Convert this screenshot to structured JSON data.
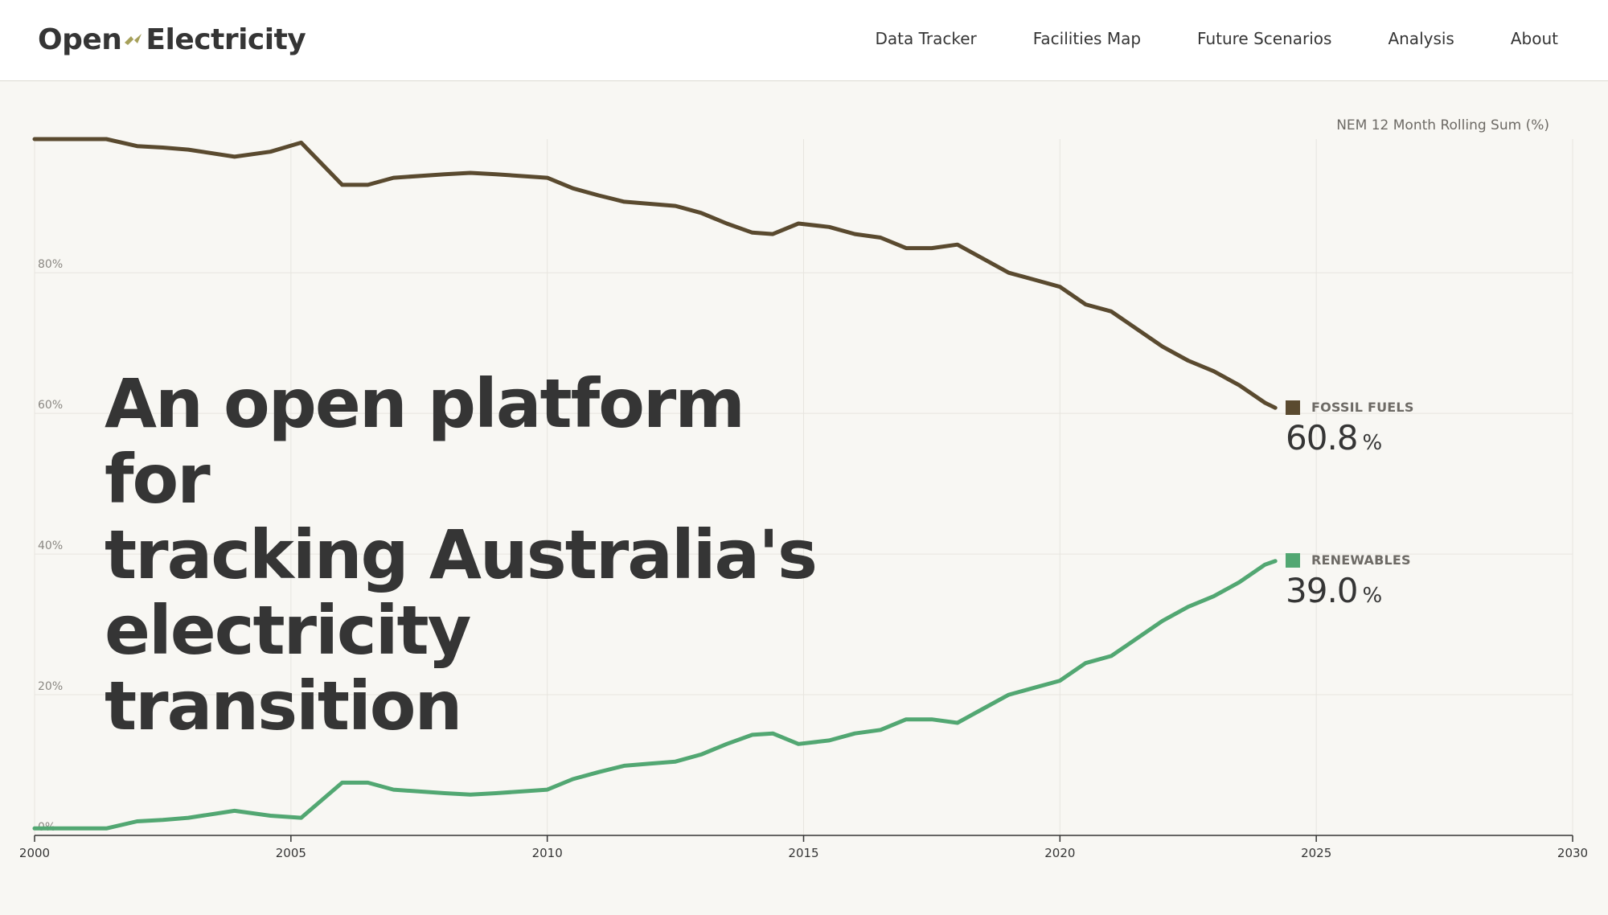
{
  "brand": {
    "name_left": "Open",
    "name_right": "Electricity",
    "logo_accent": "#a6a05a"
  },
  "nav": {
    "items": [
      {
        "label": "Data Tracker",
        "name": "nav-data-tracker"
      },
      {
        "label": "Facilities Map",
        "name": "nav-facilities-map"
      },
      {
        "label": "Future Scenarios",
        "name": "nav-future-scenarios"
      },
      {
        "label": "Analysis",
        "name": "nav-analysis"
      },
      {
        "label": "About",
        "name": "nav-about"
      }
    ]
  },
  "hero": {
    "headline_lines": [
      "An open platform for",
      "tracking Australia's",
      "electricity transition"
    ]
  },
  "chart_caption": "NEM 12 Month Rolling Sum (%)",
  "legend": {
    "fossil": {
      "label": "FOSSIL FUELS",
      "value": "60.8",
      "unit": "%",
      "color": "#5a4a2f"
    },
    "renewables": {
      "label": "RENEWABLES",
      "value": "39.0",
      "unit": "%",
      "color": "#52a772"
    }
  },
  "chart_data": {
    "type": "line",
    "title": "NEM 12 Month Rolling Sum (%)",
    "xlabel": "",
    "ylabel": "",
    "xlim": [
      2000,
      2030
    ],
    "ylim": [
      0,
      99
    ],
    "x_ticks": [
      "2000",
      "2005",
      "2010",
      "2015",
      "2020",
      "2025",
      "2030"
    ],
    "y_ticks": [
      "0%",
      "20%",
      "40%",
      "60%",
      "80%"
    ],
    "grid": true,
    "x": [
      2000,
      2001.4,
      2002,
      2002.5,
      2003,
      2003.9,
      2004.6,
      2005.2,
      2006,
      2006.5,
      2007,
      2008,
      2008.5,
      2009,
      2010,
      2010.5,
      2011,
      2011.5,
      2012,
      2012.5,
      2013,
      2013.5,
      2014,
      2014.4,
      2014.9,
      2015.5,
      2016,
      2016.5,
      2017,
      2017.5,
      2018,
      2018.5,
      2019,
      2019.5,
      2020,
      2020.5,
      2021,
      2021.5,
      2022,
      2022.5,
      2023,
      2023.5,
      2024,
      2024.2
    ],
    "series": [
      {
        "name": "FOSSIL FUELS",
        "color": "#5a4a2f",
        "values": [
          99,
          99,
          98,
          97.8,
          97.5,
          96.5,
          97.2,
          98.5,
          92.5,
          92.5,
          93.5,
          94,
          94.2,
          94,
          93.5,
          92,
          91,
          90.1,
          89.8,
          89.5,
          88.5,
          87,
          85.7,
          85.5,
          87,
          86.5,
          85.5,
          85,
          83.5,
          83.5,
          84,
          82,
          80,
          79,
          78,
          75.5,
          74.5,
          72,
          69.5,
          67.5,
          66,
          64,
          61.5,
          60.8
        ]
      },
      {
        "name": "RENEWABLES",
        "color": "#52a772",
        "values": [
          1,
          1,
          2,
          2.2,
          2.5,
          3.5,
          2.8,
          2.5,
          7.5,
          7.5,
          6.5,
          6,
          5.8,
          6,
          6.5,
          8,
          9,
          9.9,
          10.2,
          10.5,
          11.5,
          13,
          14.3,
          14.5,
          13,
          13.5,
          14.5,
          15,
          16.5,
          16.5,
          16,
          18,
          20,
          21,
          22,
          24.5,
          25.5,
          28,
          30.5,
          32.5,
          34,
          36,
          38.5,
          39
        ]
      }
    ]
  }
}
